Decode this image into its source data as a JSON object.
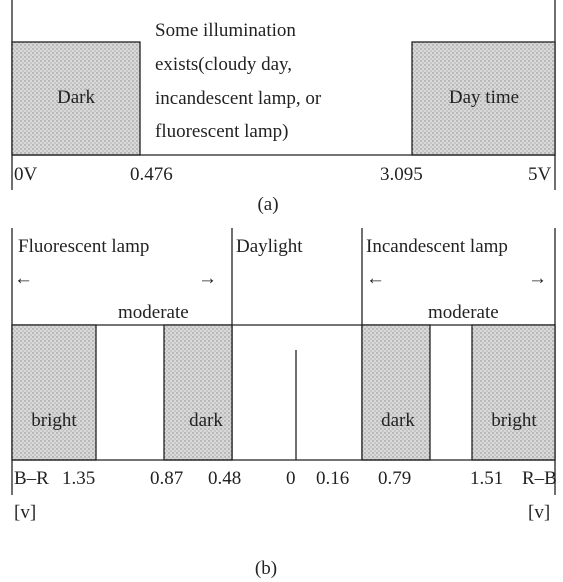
{
  "panel_a": {
    "dark_label": "Dark",
    "daytime_label": "Day time",
    "description": [
      "Some illumination",
      "exists(cloudy day,",
      "incandescent lamp, or",
      "fluorescent lamp)"
    ],
    "ticks": [
      "0V",
      "0.476",
      "3.095",
      "5V"
    ],
    "caption": "(a)"
  },
  "panel_b": {
    "headers": [
      "Fluorescent lamp",
      "Daylight",
      "Incandescent lamp"
    ],
    "arrows": [
      "←",
      "→",
      "←",
      "→"
    ],
    "moderate": [
      "moderate",
      "moderate"
    ],
    "boxes": [
      "bright",
      "dark",
      "dark",
      "bright"
    ],
    "ticks": [
      "B–R",
      "1.35",
      "0.87",
      "0.48",
      "0",
      "0.16",
      "0.79",
      "1.51",
      "R–B"
    ],
    "units": [
      "[v]",
      "[v]"
    ],
    "caption": "(b)"
  }
}
